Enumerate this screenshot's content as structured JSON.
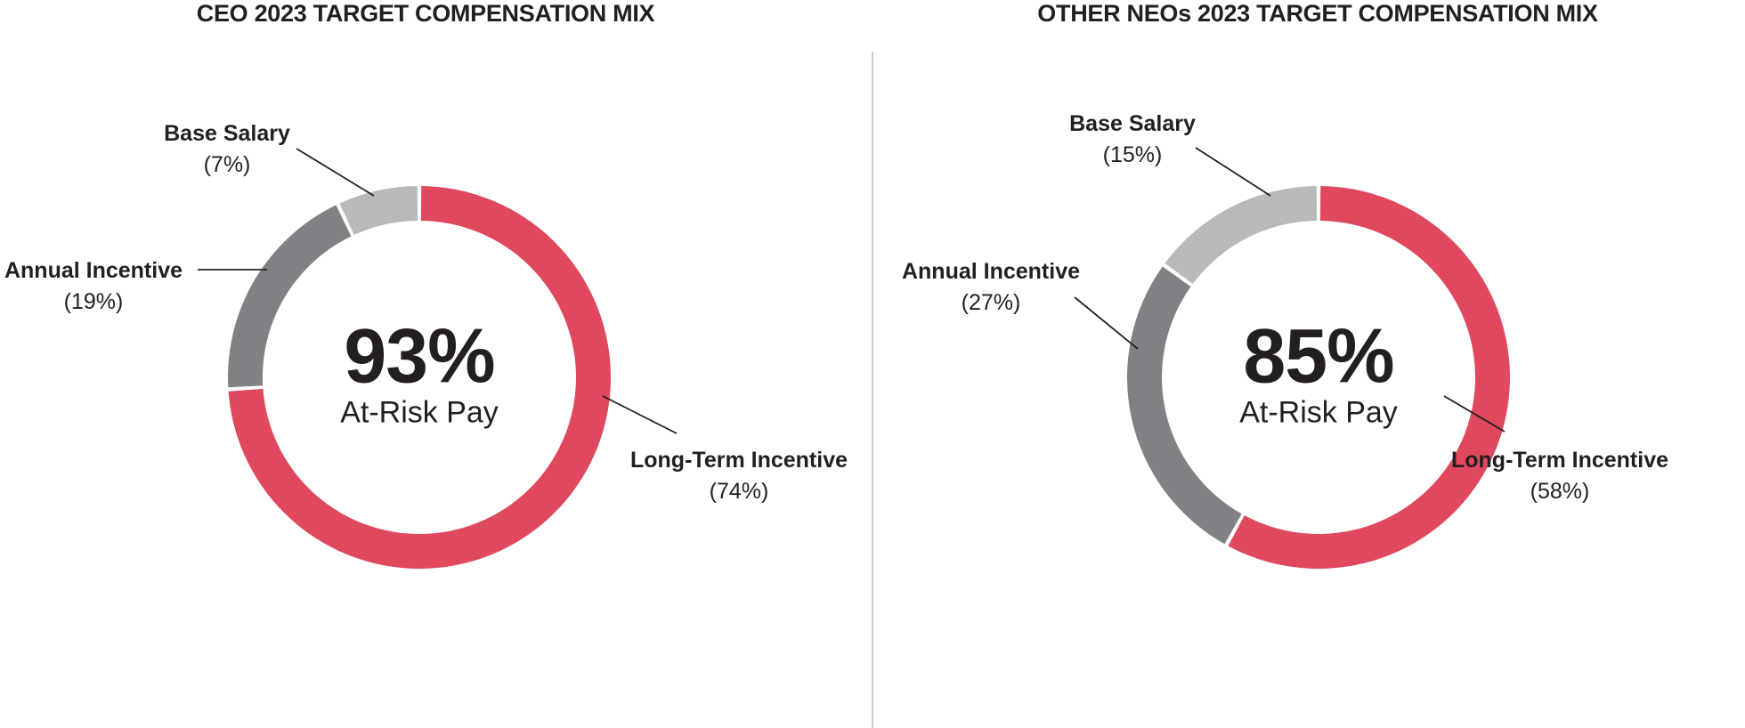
{
  "colors": {
    "red": "#E0485E",
    "dark_gray": "#808184",
    "light_gray": "#B7B9BB",
    "text": "#231F20",
    "leader": "#231F20",
    "divider": "#C8C9CA",
    "background": "#FFFFFF"
  },
  "chart_data": [
    {
      "type": "pie",
      "variant": "donut",
      "title": "CEO 2023 TARGET COMPENSATION MIX",
      "direction": "clockwise",
      "start_angle_deg": 0,
      "legend": "none",
      "center": {
        "value": "93%",
        "label": "At-Risk Pay"
      },
      "segments": [
        {
          "label": "Long-Term Incentive",
          "pct": 74,
          "pct_text": "(74%)",
          "color_name": "red"
        },
        {
          "label": "Annual Incentive",
          "pct": 19,
          "pct_text": "(19%)",
          "color_name": "dark_gray"
        },
        {
          "label": "Base Salary",
          "pct": 7,
          "pct_text": "(7%)",
          "color_name": "light_gray"
        }
      ]
    },
    {
      "type": "pie",
      "variant": "donut",
      "title": "OTHER NEOs 2023 TARGET COMPENSATION MIX",
      "direction": "clockwise",
      "start_angle_deg": 0,
      "legend": "none",
      "center": {
        "value": "85%",
        "label": "At-Risk Pay"
      },
      "segments": [
        {
          "label": "Long-Term Incentive",
          "pct": 58,
          "pct_text": "(58%)",
          "color_name": "red"
        },
        {
          "label": "Annual Incentive",
          "pct": 27,
          "pct_text": "(27%)",
          "color_name": "dark_gray"
        },
        {
          "label": "Base Salary",
          "pct": 15,
          "pct_text": "(15%)",
          "color_name": "light_gray"
        }
      ]
    }
  ]
}
